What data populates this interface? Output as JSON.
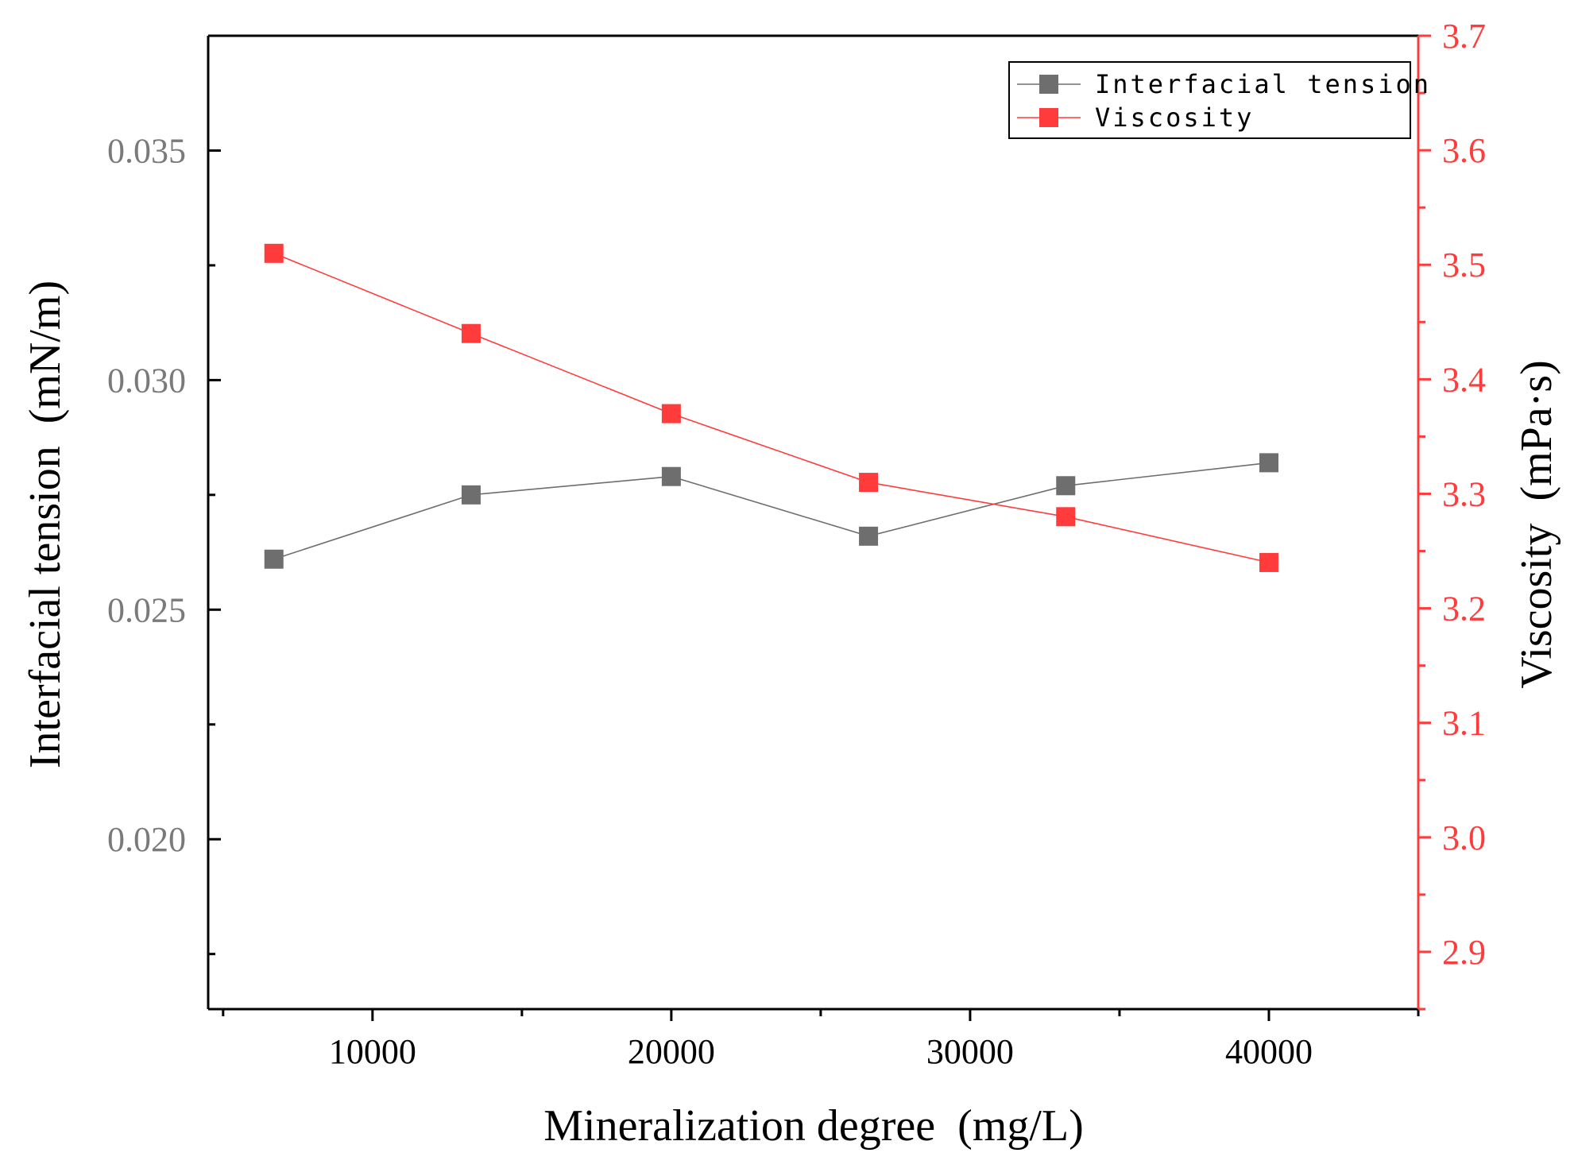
{
  "chart_data": {
    "type": "line",
    "title": "",
    "xlabel": "Mineralization degree  (mg/L)",
    "ylabel_left": "Interfacial tension  (mN/m)",
    "ylabel_right": "Viscosity  (mPa·s)",
    "xlim": [
      4500,
      45000
    ],
    "ylim_left": [
      0.0163,
      0.0375
    ],
    "ylim_right": [
      2.85,
      3.7
    ],
    "x_ticks": [
      10000,
      20000,
      30000,
      40000
    ],
    "x_tick_labels": [
      "10000",
      "20000",
      "30000",
      "40000"
    ],
    "y_left_ticks": [
      0.02,
      0.025,
      0.03,
      0.035
    ],
    "y_left_tick_labels": [
      "0.020",
      "0.025",
      "0.030",
      "0.035"
    ],
    "y_right_ticks": [
      2.9,
      3.0,
      3.1,
      3.2,
      3.3,
      3.4,
      3.5,
      3.6,
      3.7
    ],
    "y_right_tick_labels": [
      "2.9",
      "3.0",
      "3.1",
      "3.2",
      "3.3",
      "3.4",
      "3.5",
      "3.6",
      "3.7"
    ],
    "legend_position": "top-right",
    "colors": {
      "interfacial": "#6e6e6e",
      "viscosity": "#ff3b3b",
      "axis": "#000000",
      "left_tick_text": "#7a7a7a",
      "right_axis": "#ff3b3b"
    },
    "series": [
      {
        "name": "Interfacial tension",
        "axis": "left",
        "color": "#6e6e6e",
        "x": [
          6700,
          13300,
          20000,
          26600,
          33200,
          40000
        ],
        "values": [
          0.0261,
          0.0275,
          0.0279,
          0.0266,
          0.0277,
          0.0282
        ]
      },
      {
        "name": "Viscosity",
        "axis": "right",
        "color": "#ff3b3b",
        "x": [
          6700,
          13300,
          20000,
          26600,
          33200,
          40000
        ],
        "values": [
          3.51,
          3.44,
          3.37,
          3.31,
          3.28,
          3.24
        ]
      }
    ]
  }
}
